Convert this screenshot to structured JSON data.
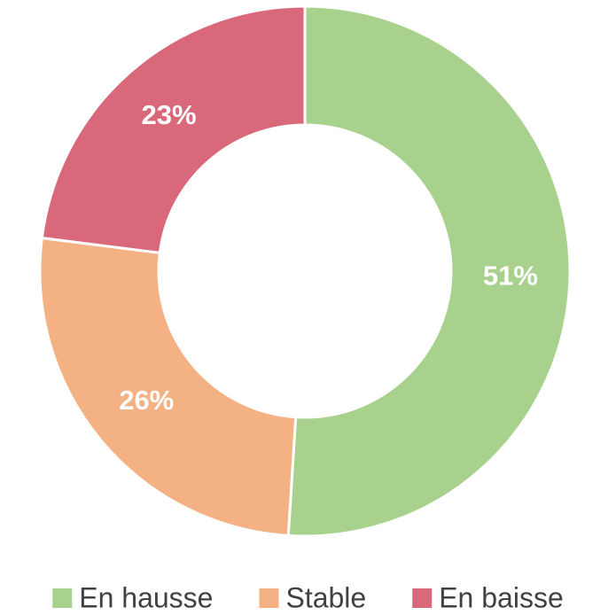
{
  "chart_data": {
    "type": "donut",
    "categories": [
      "En hausse",
      "Stable",
      "En baisse"
    ],
    "values": [
      51,
      26,
      23
    ],
    "value_labels": [
      "51%",
      "26%",
      "23%"
    ],
    "colors": [
      "#a9d18e",
      "#f4b183",
      "#d9687a"
    ],
    "legend": "bottom"
  }
}
